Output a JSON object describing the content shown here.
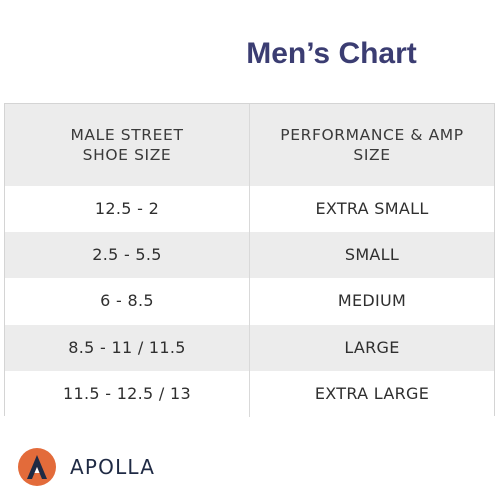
{
  "title": "Men’s Chart",
  "table": {
    "headers": [
      "MALE STREET\nSHOE SIZE",
      "PERFORMANCE & AMP\nSIZE"
    ],
    "rows": [
      [
        "12.5 - 2",
        "EXTRA SMALL"
      ],
      [
        "2.5 - 5.5",
        "SMALL"
      ],
      [
        "6 - 8.5",
        "MEDIUM"
      ],
      [
        "8.5 - 11 / 11.5",
        "LARGE"
      ],
      [
        "11.5 - 12.5 / 13",
        "EXTRA LARGE"
      ]
    ]
  },
  "brand": {
    "name": "APOLLA",
    "logo_icon": "apolla-logo-icon"
  },
  "colors": {
    "title": "#3b3d72",
    "logo_circle": "#e36b3a",
    "logo_mark": "#1f2a44",
    "row_shade": "#ececec"
  }
}
